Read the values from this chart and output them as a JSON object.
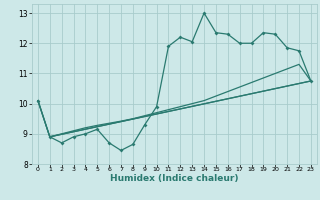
{
  "title": "",
  "xlabel": "Humidex (Indice chaleur)",
  "xlim": [
    -0.5,
    23.5
  ],
  "ylim": [
    8,
    13.3
  ],
  "yticks": [
    8,
    9,
    10,
    11,
    12,
    13
  ],
  "xticks": [
    0,
    1,
    2,
    3,
    4,
    5,
    6,
    7,
    8,
    9,
    10,
    11,
    12,
    13,
    14,
    15,
    16,
    17,
    18,
    19,
    20,
    21,
    22,
    23
  ],
  "bg_color": "#cde8e8",
  "grid_color": "#a8cccc",
  "line_color": "#2a7a70",
  "line1_x": [
    0,
    1,
    2,
    3,
    4,
    5,
    6,
    7,
    8,
    9,
    10,
    11,
    12,
    13,
    14,
    15,
    16,
    17,
    18,
    19,
    20,
    21,
    22,
    23
  ],
  "line1_y": [
    10.1,
    8.9,
    8.7,
    8.9,
    9.0,
    9.15,
    8.7,
    8.45,
    8.65,
    9.3,
    9.9,
    11.9,
    12.2,
    12.05,
    13.0,
    12.35,
    12.3,
    12.0,
    12.0,
    12.35,
    12.3,
    11.85,
    11.75,
    10.75
  ],
  "line2_x": [
    0,
    1,
    2,
    3,
    4,
    5,
    6,
    7,
    8,
    9,
    10,
    11,
    12,
    13,
    14,
    15,
    16,
    17,
    18,
    19,
    20,
    21,
    22,
    23
  ],
  "line2_y": [
    10.1,
    8.9,
    9.0,
    9.1,
    9.2,
    9.28,
    9.35,
    9.42,
    9.5,
    9.6,
    9.7,
    9.8,
    9.9,
    10.0,
    10.1,
    10.25,
    10.4,
    10.55,
    10.7,
    10.85,
    11.0,
    11.15,
    11.3,
    10.75
  ],
  "line3_x": [
    0,
    1,
    23
  ],
  "line3_y": [
    10.1,
    8.9,
    10.75
  ],
  "line4_x": [
    1,
    23
  ],
  "line4_y": [
    8.9,
    10.75
  ]
}
